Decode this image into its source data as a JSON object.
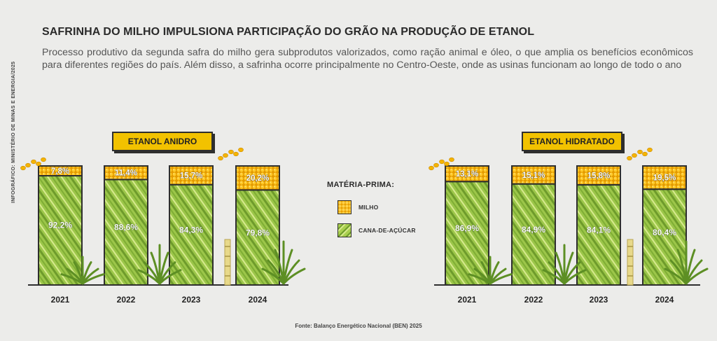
{
  "title": "SAFRINHA DO MILHO IMPULSIONA PARTICIPAÇÃO DO GRÃO NA PRODUÇÃO DE ETANOL",
  "subtitle": "Processo produtivo da segunda safra do milho gera subprodutos valorizados, como ração animal e óleo, o que amplia os benefícios econômicos para diferentes regiões do país. Além disso, a safrinha ocorre principalmente no Centro-Oeste, onde as usinas funcionam ao longo de todo o ano",
  "credit": "INFOGRÁFICO: MINISTÉRIO DE MINAS E ENERGIA/2025",
  "source": "Fonte: Balanço Energético Nacional (BEN) 2025",
  "legend": {
    "title": "MATÉRIA-PRIMA:",
    "items": [
      {
        "label": "MILHO",
        "swatch": "milho"
      },
      {
        "label": "CANA-DE-AÇÚCAR",
        "swatch": "cana"
      }
    ]
  },
  "colors": {
    "milho": "#f2b000",
    "cana": "#8dbb3c",
    "label_bg": "#f2c200",
    "frame": "#2e2e2e"
  },
  "chart_data": [
    {
      "type": "bar",
      "stacked": true,
      "title": "ETANOL ANIDRO",
      "categories": [
        "2021",
        "2022",
        "2023",
        "2024"
      ],
      "series": [
        {
          "name": "MILHO",
          "values": [
            7.8,
            11.4,
            15.7,
            20.2
          ],
          "labels": [
            "7,8%",
            "11,4%",
            "15,7%",
            "20,2%"
          ]
        },
        {
          "name": "CANA-DE-AÇÚCAR",
          "values": [
            92.2,
            88.6,
            84.3,
            79.8
          ],
          "labels": [
            "92,2%",
            "88,6%",
            "84,3%",
            "79,8%"
          ]
        }
      ],
      "ylim": [
        0,
        100
      ]
    },
    {
      "type": "bar",
      "stacked": true,
      "title": "ETANOL HIDRATADO",
      "categories": [
        "2021",
        "2022",
        "2023",
        "2024"
      ],
      "series": [
        {
          "name": "MILHO",
          "values": [
            13.1,
            15.1,
            15.8,
            19.5
          ],
          "labels": [
            "13,1%",
            "15,1%",
            "15,8%",
            "19,5%"
          ]
        },
        {
          "name": "CANA-DE-AÇÚCAR",
          "values": [
            86.9,
            84.9,
            84.1,
            80.4
          ],
          "labels": [
            "86,9%",
            "84,9%",
            "84,1%",
            "80,4%"
          ]
        }
      ],
      "ylim": [
        0,
        100
      ]
    }
  ]
}
